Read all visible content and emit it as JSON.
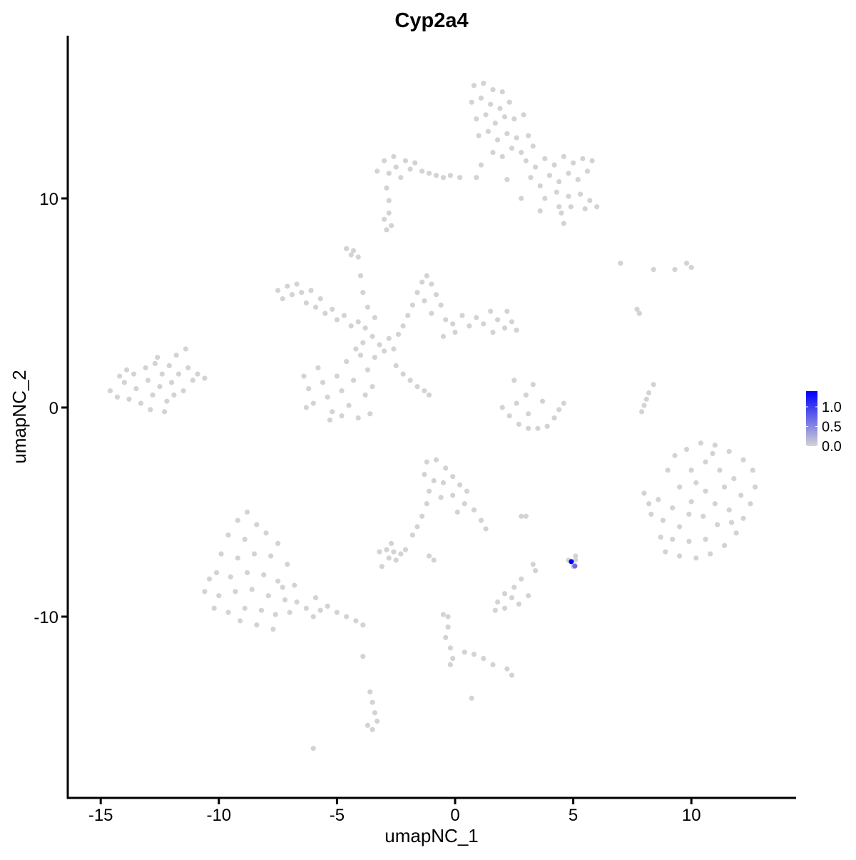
{
  "chart_data": {
    "type": "scatter",
    "title": "Cyp2a4",
    "xlabel": "umapNC_1",
    "ylabel": "umapNC_2",
    "xlim": [
      -16.4,
      14.4
    ],
    "ylim": [
      -18.7,
      17.8
    ],
    "xticks": [
      -15,
      -10,
      -5,
      0,
      5,
      10
    ],
    "yticks": [
      -10,
      0,
      10
    ],
    "grid": false,
    "color_low": "#d3d3d3",
    "color_high": "#0000ff",
    "legend": {
      "position": "right",
      "ticks": [
        0.0,
        0.5,
        1.0
      ],
      "tick_labels": [
        "0.0",
        "0.5",
        "1.0"
      ],
      "max": 1.4
    },
    "points_zero": [
      [
        -14.6,
        0.8
      ],
      [
        -14.3,
        0.5
      ],
      [
        -14.0,
        1.2
      ],
      [
        -13.8,
        0.4
      ],
      [
        -13.6,
        1.6
      ],
      [
        -13.5,
        0.9
      ],
      [
        -13.3,
        0.2
      ],
      [
        -13.1,
        1.9
      ],
      [
        -13.0,
        1.3
      ],
      [
        -12.8,
        0.6
      ],
      [
        -12.7,
        2.1
      ],
      [
        -12.5,
        1.0
      ],
      [
        -12.4,
        1.6
      ],
      [
        -12.2,
        0.3
      ],
      [
        -12.1,
        2.0
      ],
      [
        -12.0,
        1.2
      ],
      [
        -11.8,
        2.5
      ],
      [
        -11.7,
        1.6
      ],
      [
        -11.5,
        0.8
      ],
      [
        -11.4,
        2.8
      ],
      [
        -11.3,
        1.9
      ],
      [
        -11.1,
        1.3
      ],
      [
        -10.9,
        1.6
      ],
      [
        -10.6,
        1.4
      ],
      [
        -13.9,
        1.8
      ],
      [
        -12.9,
        -0.1
      ],
      [
        -12.3,
        -0.2
      ],
      [
        -14.2,
        1.5
      ],
      [
        -11.9,
        0.6
      ],
      [
        -12.6,
        2.4
      ],
      [
        -3.3,
        11.3
      ],
      [
        -3.0,
        11.8
      ],
      [
        -2.8,
        11.2
      ],
      [
        -2.6,
        12.0
      ],
      [
        -2.5,
        11.5
      ],
      [
        -2.3,
        11.0
      ],
      [
        -2.1,
        11.8
      ],
      [
        -1.9,
        11.4
      ],
      [
        -1.7,
        11.7
      ],
      [
        -1.4,
        11.3
      ],
      [
        -1.1,
        11.2
      ],
      [
        -0.8,
        11.1
      ],
      [
        -0.5,
        11.0
      ],
      [
        -0.2,
        11.1
      ],
      [
        0.2,
        11.0
      ],
      [
        -2.9,
        10.5
      ],
      [
        -2.8,
        9.9
      ],
      [
        -2.7,
        8.7
      ],
      [
        -2.9,
        8.5
      ],
      [
        0.8,
        15.4
      ],
      [
        1.2,
        15.5
      ],
      [
        1.6,
        15.2
      ],
      [
        2.0,
        15.1
      ],
      [
        0.7,
        14.6
      ],
      [
        1.1,
        14.8
      ],
      [
        1.5,
        14.5
      ],
      [
        1.9,
        14.3
      ],
      [
        2.3,
        14.6
      ],
      [
        0.9,
        13.8
      ],
      [
        1.3,
        14.0
      ],
      [
        1.7,
        13.6
      ],
      [
        2.1,
        13.9
      ],
      [
        2.5,
        13.8
      ],
      [
        1.0,
        13.0
      ],
      [
        1.4,
        13.2
      ],
      [
        1.8,
        12.8
      ],
      [
        2.2,
        13.1
      ],
      [
        2.6,
        12.9
      ],
      [
        1.6,
        12.2
      ],
      [
        2.0,
        12.0
      ],
      [
        2.4,
        12.4
      ],
      [
        2.8,
        12.2
      ],
      [
        1.1,
        11.6
      ],
      [
        0.9,
        11.0
      ],
      [
        3.0,
        11.8
      ],
      [
        3.4,
        11.5
      ],
      [
        3.8,
        11.9
      ],
      [
        4.2,
        11.6
      ],
      [
        4.6,
        12.0
      ],
      [
        5.0,
        11.7
      ],
      [
        5.4,
        11.9
      ],
      [
        5.8,
        11.8
      ],
      [
        3.2,
        11.0
      ],
      [
        3.6,
        10.6
      ],
      [
        4.0,
        11.1
      ],
      [
        4.4,
        10.8
      ],
      [
        4.8,
        11.2
      ],
      [
        5.2,
        10.9
      ],
      [
        5.6,
        11.3
      ],
      [
        3.8,
        10.0
      ],
      [
        4.3,
        10.3
      ],
      [
        4.8,
        10.1
      ],
      [
        5.3,
        10.2
      ],
      [
        5.7,
        9.9
      ],
      [
        6.0,
        9.6
      ],
      [
        5.5,
        9.5
      ],
      [
        4.9,
        9.6
      ],
      [
        4.5,
        9.3
      ],
      [
        4.6,
        8.8
      ],
      [
        4.4,
        9.6
      ],
      [
        3.6,
        9.4
      ],
      [
        2.8,
        10.0
      ],
      [
        2.2,
        10.9
      ],
      [
        2.9,
        14.0
      ],
      [
        3.1,
        13.0
      ],
      [
        3.3,
        12.5
      ],
      [
        -7.5,
        5.6
      ],
      [
        -7.3,
        5.2
      ],
      [
        -7.1,
        5.8
      ],
      [
        -6.9,
        5.4
      ],
      [
        -6.7,
        5.9
      ],
      [
        -6.5,
        5.5
      ],
      [
        -6.3,
        5.0
      ],
      [
        -6.1,
        5.6
      ],
      [
        -5.9,
        4.8
      ],
      [
        -5.7,
        5.2
      ],
      [
        -5.5,
        4.5
      ],
      [
        -5.2,
        4.7
      ],
      [
        -5.0,
        4.2
      ],
      [
        -4.7,
        4.4
      ],
      [
        -4.4,
        3.9
      ],
      [
        -4.1,
        4.1
      ],
      [
        -3.8,
        3.8
      ],
      [
        -3.5,
        3.4
      ],
      [
        -3.2,
        3.0
      ],
      [
        -3.0,
        2.7
      ],
      [
        -2.8,
        3.3
      ],
      [
        -2.6,
        2.8
      ],
      [
        -2.4,
        3.5
      ],
      [
        -3.4,
        2.4
      ],
      [
        -4.3,
        7.5
      ],
      [
        -4.1,
        7.2
      ],
      [
        -4.0,
        6.3
      ],
      [
        -3.9,
        5.5
      ],
      [
        -3.7,
        4.8
      ],
      [
        -3.4,
        4.3
      ],
      [
        -2.2,
        3.9
      ],
      [
        -2.0,
        4.4
      ],
      [
        -1.8,
        4.9
      ],
      [
        -1.6,
        5.5
      ],
      [
        -1.4,
        6.0
      ],
      [
        -1.2,
        6.3
      ],
      [
        -1.0,
        5.9
      ],
      [
        -0.8,
        5.4
      ],
      [
        -0.6,
        4.9
      ],
      [
        -1.3,
        5.1
      ],
      [
        -1.0,
        4.5
      ],
      [
        -0.4,
        4.2
      ],
      [
        -0.1,
        4.0
      ],
      [
        0.3,
        4.4
      ],
      [
        0.6,
        3.9
      ],
      [
        0.9,
        4.3
      ],
      [
        1.2,
        4.0
      ],
      [
        1.5,
        4.6
      ],
      [
        1.8,
        4.2
      ],
      [
        2.1,
        3.8
      ],
      [
        2.4,
        4.1
      ],
      [
        2.6,
        3.7
      ],
      [
        2.2,
        4.6
      ],
      [
        1.6,
        3.6
      ],
      [
        0.0,
        3.6
      ],
      [
        -0.5,
        3.4
      ],
      [
        -2.5,
        2.0
      ],
      [
        -2.2,
        1.6
      ],
      [
        -1.9,
        1.3
      ],
      [
        -1.6,
        1.0
      ],
      [
        -1.3,
        0.8
      ],
      [
        -1.1,
        0.6
      ],
      [
        -6.4,
        1.5
      ],
      [
        -6.2,
        0.9
      ],
      [
        -6.0,
        0.2
      ],
      [
        -5.8,
        1.9
      ],
      [
        -5.6,
        1.2
      ],
      [
        -5.4,
        0.5
      ],
      [
        -5.2,
        -0.2
      ],
      [
        -5.0,
        1.5
      ],
      [
        -4.8,
        0.8
      ],
      [
        -4.6,
        2.2
      ],
      [
        -4.5,
        0.1
      ],
      [
        -4.3,
        1.3
      ],
      [
        -4.1,
        -0.5
      ],
      [
        -4.0,
        2.5
      ],
      [
        -3.8,
        0.6
      ],
      [
        -3.7,
        1.8
      ],
      [
        -3.6,
        -0.3
      ],
      [
        -3.5,
        1.0
      ],
      [
        -5.3,
        -0.6
      ],
      [
        -6.3,
        0.0
      ],
      [
        -4.8,
        -0.4
      ],
      [
        -3.9,
        3.1
      ],
      [
        -4.2,
        2.8
      ],
      [
        2.0,
        0.0
      ],
      [
        2.3,
        -0.4
      ],
      [
        2.7,
        -0.8
      ],
      [
        3.1,
        -1.0
      ],
      [
        3.5,
        -1.0
      ],
      [
        3.9,
        -0.9
      ],
      [
        4.2,
        -0.5
      ],
      [
        4.4,
        -0.1
      ],
      [
        4.6,
        0.2
      ],
      [
        2.6,
        0.2
      ],
      [
        3.0,
        0.6
      ],
      [
        3.3,
        1.1
      ],
      [
        3.1,
        -0.3
      ],
      [
        3.7,
        0.3
      ],
      [
        2.5,
        1.3
      ],
      [
        7.9,
        -0.2
      ],
      [
        8.0,
        0.1
      ],
      [
        8.1,
        0.4
      ],
      [
        8.2,
        0.7
      ],
      [
        8.4,
        1.1
      ],
      [
        7.0,
        6.9
      ],
      [
        8.4,
        6.6
      ],
      [
        9.3,
        6.6
      ],
      [
        9.8,
        6.9
      ],
      [
        10.0,
        6.7
      ],
      [
        7.7,
        4.7
      ],
      [
        7.8,
        4.5
      ],
      [
        8.0,
        -4.1
      ],
      [
        8.2,
        -4.6
      ],
      [
        8.3,
        -5.1
      ],
      [
        8.6,
        -4.4
      ],
      [
        9.0,
        -3.0
      ],
      [
        9.3,
        -2.3
      ],
      [
        9.8,
        -2.0
      ],
      [
        10.4,
        -1.7
      ],
      [
        11.0,
        -1.8
      ],
      [
        11.6,
        -2.1
      ],
      [
        12.2,
        -2.5
      ],
      [
        12.6,
        -3.0
      ],
      [
        12.7,
        -3.8
      ],
      [
        12.5,
        -4.6
      ],
      [
        12.2,
        -5.3
      ],
      [
        11.9,
        -6.0
      ],
      [
        11.4,
        -6.6
      ],
      [
        10.8,
        -7.0
      ],
      [
        10.2,
        -7.2
      ],
      [
        9.5,
        -7.1
      ],
      [
        8.9,
        -6.9
      ],
      [
        8.7,
        -6.2
      ],
      [
        8.8,
        -5.4
      ],
      [
        9.2,
        -4.8
      ],
      [
        9.5,
        -3.8
      ],
      [
        10.0,
        -3.0
      ],
      [
        10.6,
        -2.6
      ],
      [
        11.2,
        -3.0
      ],
      [
        11.8,
        -3.4
      ],
      [
        12.1,
        -4.2
      ],
      [
        11.6,
        -4.9
      ],
      [
        11.1,
        -5.6
      ],
      [
        10.6,
        -6.3
      ],
      [
        9.9,
        -6.4
      ],
      [
        9.5,
        -5.7
      ],
      [
        10.0,
        -4.5
      ],
      [
        10.6,
        -4.0
      ],
      [
        11.0,
        -4.6
      ],
      [
        10.5,
        -5.2
      ],
      [
        9.9,
        -5.1
      ],
      [
        10.2,
        -3.6
      ],
      [
        11.4,
        -3.8
      ],
      [
        9.2,
        -6.3
      ],
      [
        11.7,
        -5.5
      ],
      [
        10.9,
        -2.2
      ],
      [
        -8.8,
        -5.0
      ],
      [
        -9.2,
        -5.4
      ],
      [
        -8.4,
        -5.6
      ],
      [
        -9.6,
        -6.1
      ],
      [
        -8.9,
        -6.3
      ],
      [
        -8.0,
        -6.0
      ],
      [
        -9.9,
        -7.0
      ],
      [
        -9.2,
        -7.2
      ],
      [
        -8.5,
        -7.0
      ],
      [
        -7.8,
        -7.1
      ],
      [
        -10.1,
        -7.9
      ],
      [
        -9.5,
        -8.1
      ],
      [
        -8.8,
        -7.9
      ],
      [
        -8.1,
        -8.0
      ],
      [
        -7.5,
        -8.3
      ],
      [
        -10.6,
        -8.8
      ],
      [
        -10.0,
        -9.0
      ],
      [
        -9.3,
        -8.8
      ],
      [
        -8.6,
        -8.7
      ],
      [
        -7.9,
        -9.0
      ],
      [
        -7.2,
        -9.2
      ],
      [
        -10.2,
        -9.6
      ],
      [
        -9.6,
        -9.8
      ],
      [
        -8.9,
        -9.6
      ],
      [
        -8.2,
        -9.7
      ],
      [
        -7.6,
        -9.9
      ],
      [
        -9.1,
        -10.2
      ],
      [
        -8.4,
        -10.4
      ],
      [
        -7.7,
        -10.6
      ],
      [
        -7.0,
        -9.8
      ],
      [
        -6.7,
        -9.3
      ],
      [
        -6.3,
        -9.6
      ],
      [
        -6.8,
        -8.5
      ],
      [
        -7.3,
        -8.6
      ],
      [
        -5.9,
        -9.1
      ],
      [
        -5.4,
        -9.5
      ],
      [
        -5.0,
        -9.8
      ],
      [
        -4.6,
        -10.0
      ],
      [
        -4.2,
        -10.2
      ],
      [
        -3.9,
        -10.4
      ],
      [
        -5.7,
        -9.7
      ],
      [
        -6.0,
        -10.0
      ],
      [
        -10.4,
        -8.2
      ],
      [
        -7.5,
        -6.5
      ],
      [
        -7.1,
        -7.5
      ],
      [
        -1.2,
        -2.6
      ],
      [
        -0.8,
        -2.5
      ],
      [
        -0.4,
        -2.9
      ],
      [
        -1.3,
        -3.2
      ],
      [
        -0.9,
        -3.5
      ],
      [
        -0.5,
        -3.6
      ],
      [
        -0.1,
        -3.3
      ],
      [
        0.2,
        -3.7
      ],
      [
        0.5,
        -4.0
      ],
      [
        -1.1,
        -4.0
      ],
      [
        -0.6,
        -4.3
      ],
      [
        -0.1,
        -4.2
      ],
      [
        0.4,
        -4.6
      ],
      [
        0.8,
        -4.9
      ],
      [
        1.1,
        -5.4
      ],
      [
        1.3,
        -5.8
      ],
      [
        0.1,
        -5.0
      ],
      [
        -1.2,
        -4.6
      ],
      [
        -1.4,
        -5.2
      ],
      [
        -1.6,
        -5.7
      ],
      [
        -1.8,
        -6.1
      ],
      [
        -3.2,
        -6.9
      ],
      [
        -2.9,
        -6.8
      ],
      [
        -2.6,
        -6.9
      ],
      [
        -2.3,
        -7.0
      ],
      [
        -2.8,
        -7.2
      ],
      [
        -2.5,
        -7.3
      ],
      [
        -2.1,
        -6.8
      ],
      [
        -2.7,
        -6.5
      ],
      [
        -3.1,
        -7.6
      ],
      [
        -1.1,
        -7.1
      ],
      [
        -0.9,
        -7.3
      ],
      [
        3.0,
        -5.2
      ],
      [
        2.8,
        -5.2
      ],
      [
        1.8,
        -9.3
      ],
      [
        2.1,
        -9.6
      ],
      [
        2.4,
        -9.1
      ],
      [
        2.7,
        -9.4
      ],
      [
        2.1,
        -8.9
      ],
      [
        2.5,
        -8.6
      ],
      [
        2.8,
        -8.2
      ],
      [
        3.1,
        -9.0
      ],
      [
        1.7,
        -9.7
      ],
      [
        3.3,
        -7.5
      ],
      [
        3.4,
        -7.8
      ],
      [
        5.1,
        -7.1
      ],
      [
        4.8,
        -7.3
      ],
      [
        5.0,
        -7.6
      ],
      [
        5.1,
        -7.3
      ],
      [
        -0.5,
        -9.9
      ],
      [
        -0.3,
        -10.5
      ],
      [
        -0.4,
        -11.0
      ],
      [
        -0.2,
        -11.5
      ],
      [
        -0.1,
        -12.0
      ],
      [
        -0.2,
        -12.3
      ],
      [
        -0.3,
        -10.0
      ],
      [
        0.4,
        -11.7
      ],
      [
        0.8,
        -11.8
      ],
      [
        1.2,
        -12.0
      ],
      [
        1.6,
        -12.3
      ],
      [
        2.2,
        -12.5
      ],
      [
        2.4,
        -12.8
      ],
      [
        0.7,
        -13.9
      ],
      [
        -3.9,
        -11.9
      ],
      [
        -3.6,
        -13.6
      ],
      [
        -3.5,
        -14.1
      ],
      [
        -3.4,
        -14.6
      ],
      [
        -3.3,
        -15.0
      ],
      [
        -3.5,
        -15.4
      ],
      [
        -3.7,
        -15.2
      ],
      [
        -6.0,
        -16.3
      ],
      [
        -3.0,
        9.0
      ],
      [
        -2.8,
        9.3
      ],
      [
        -4.6,
        7.6
      ],
      [
        -4.4,
        7.3
      ]
    ],
    "points_expressed": [
      {
        "x": 5.07,
        "y": -7.58,
        "value": 0.7
      },
      {
        "x": 4.92,
        "y": -7.37,
        "value": 1.4
      }
    ]
  }
}
